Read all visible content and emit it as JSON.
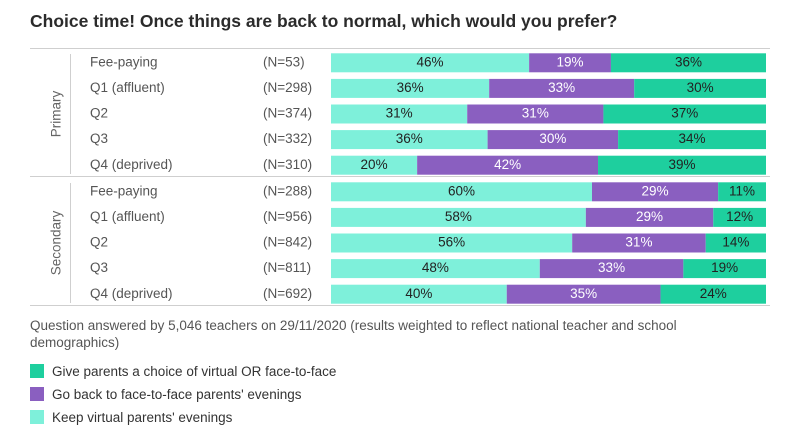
{
  "chart_data": {
    "type": "bar",
    "title": "Choice time! Once things are back to normal, which would you prefer?",
    "groups": [
      {
        "name": "Primary",
        "rows": [
          {
            "label": "Fee-paying",
            "n": "(N=53)",
            "values": [
              46,
              19,
              36
            ]
          },
          {
            "label": "Q1 (affluent)",
            "n": "(N=298)",
            "values": [
              36,
              33,
              30
            ]
          },
          {
            "label": "Q2",
            "n": "(N=374)",
            "values": [
              31,
              31,
              37
            ]
          },
          {
            "label": "Q3",
            "n": "(N=332)",
            "values": [
              36,
              30,
              34
            ]
          },
          {
            "label": "Q4 (deprived)",
            "n": "(N=310)",
            "values": [
              20,
              42,
              39
            ]
          }
        ]
      },
      {
        "name": "Secondary",
        "rows": [
          {
            "label": "Fee-paying",
            "n": "(N=288)",
            "values": [
              60,
              29,
              11
            ]
          },
          {
            "label": "Q1 (affluent)",
            "n": "(N=956)",
            "values": [
              58,
              29,
              12
            ]
          },
          {
            "label": "Q2",
            "n": "(N=842)",
            "values": [
              56,
              31,
              14
            ]
          },
          {
            "label": "Q3",
            "n": "(N=811)",
            "values": [
              48,
              33,
              19
            ]
          },
          {
            "label": "Q4 (deprived)",
            "n": "(N=692)",
            "values": [
              40,
              35,
              24
            ]
          }
        ]
      }
    ],
    "series": [
      {
        "name": "Keep virtual parents' evenings",
        "color": "#7ef0da"
      },
      {
        "name": "Go back to face-to-face parents' evenings",
        "color": "#8a5fc0"
      },
      {
        "name": "Give parents a choice of virtual OR face-to-face",
        "color": "#1ecf9e"
      }
    ],
    "value_suffix": "%",
    "stacked": true,
    "orientation": "horizontal"
  },
  "note": "Question answered by 5,046 teachers on 29/11/2020 (results weighted to reflect national teacher and school demographics)",
  "legend": [
    {
      "label": "Give parents a choice of virtual OR face-to-face",
      "color": "#1ecf9e"
    },
    {
      "label": "Go back to face-to-face parents' evenings",
      "color": "#8a5fc0"
    },
    {
      "label": "Keep virtual parents' evenings",
      "color": "#7ef0da"
    }
  ]
}
